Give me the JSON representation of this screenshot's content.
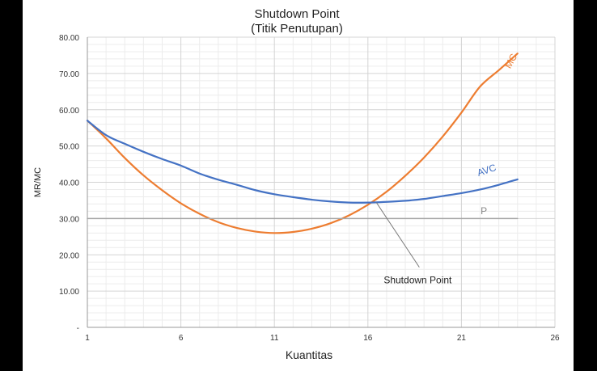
{
  "chart_data": {
    "type": "line",
    "title": "Shutdown Point",
    "subtitle": "(Titik Penutupan)",
    "xlabel": "Kuantitas",
    "ylabel": "MR/MC",
    "xlim": [
      1,
      26
    ],
    "ylim": [
      0,
      80
    ],
    "x_ticks": [
      "1",
      "6",
      "11",
      "16",
      "21",
      "26"
    ],
    "y_ticks": [
      "-",
      "10.00",
      "20.00",
      "30.00",
      "40.00",
      "50.00",
      "60.00",
      "70.00",
      "80.00"
    ],
    "grid": true,
    "series": [
      {
        "name": "MC",
        "color": "#ED7D31",
        "x": [
          1,
          2,
          3,
          4,
          5,
          6,
          7,
          8,
          9,
          10,
          11,
          12,
          13,
          14,
          15,
          16,
          17,
          18,
          19,
          20,
          21,
          22,
          23,
          24
        ],
        "y": [
          57,
          52.1,
          46.7,
          41.9,
          37.8,
          34.2,
          31.3,
          29.0,
          27.4,
          26.4,
          26.0,
          26.3,
          27.2,
          28.7,
          30.9,
          33.8,
          37.4,
          41.8,
          46.8,
          52.6,
          59.2,
          66.4,
          70.9,
          75.5
        ]
      },
      {
        "name": "AVC",
        "color": "#4472C4",
        "x": [
          1,
          2,
          3,
          4,
          5,
          6,
          7,
          8,
          9,
          10,
          11,
          12,
          13,
          14,
          15,
          16,
          17,
          18,
          19,
          20,
          21,
          22,
          23,
          24
        ],
        "y": [
          57,
          53.0,
          50.6,
          48.4,
          46.4,
          44.6,
          42.4,
          40.7,
          39.3,
          37.8,
          36.7,
          35.9,
          35.2,
          34.7,
          34.4,
          34.4,
          34.6,
          34.9,
          35.4,
          36.2,
          37.0,
          38.0,
          39.3,
          40.8
        ]
      },
      {
        "name": "P",
        "color": "#A5A5A5",
        "x": [
          1,
          24
        ],
        "y": [
          30,
          30
        ]
      }
    ],
    "annotations": [
      {
        "text": "Shutdown Point",
        "x": 16.5,
        "y": 34.4
      }
    ]
  }
}
